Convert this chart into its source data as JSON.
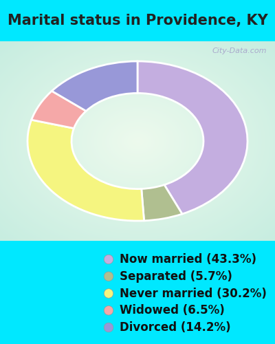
{
  "title": "Marital status in Providence, KY",
  "slices": [
    43.3,
    5.7,
    30.2,
    6.5,
    14.2
  ],
  "labels": [
    "Now married (43.3%)",
    "Separated (5.7%)",
    "Never married (30.2%)",
    "Widowed (6.5%)",
    "Divorced (14.2%)"
  ],
  "colors": [
    "#c4aee0",
    "#b0bf90",
    "#f5f580",
    "#f5a8a8",
    "#9898d8"
  ],
  "title_color": "#222222",
  "title_bg": "#00e8ff",
  "chart_bg_left": "#c8ede0",
  "chart_bg_right": "#e8f5e8",
  "legend_bg": "#00e8ff",
  "title_fontsize": 15,
  "legend_fontsize": 12,
  "watermark": "City-Data.com"
}
